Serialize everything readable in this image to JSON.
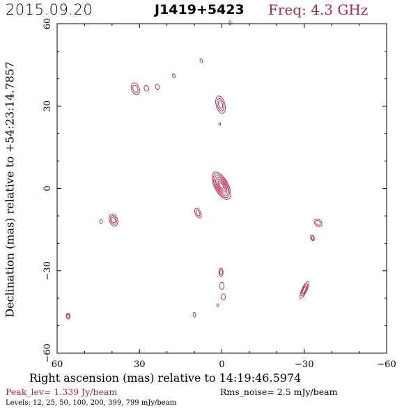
{
  "header": {
    "date": "2015.09.20",
    "source": "J1419+5423",
    "freq": "Freq: 4.3 GHz"
  },
  "footer": {
    "peak": "Peak_lev=  1.339 Jy/beam",
    "rms": "Rms_noise=  2.5 mJy/beam",
    "levels": "Levels:  12,  25,  50, 100, 200, 399, 799 mJy/beam"
  },
  "colors": {
    "contour": "#b0244f",
    "beam": "#666666",
    "text": "#000000"
  },
  "chart_data": {
    "type": "contour",
    "title": "J1419+5423",
    "xlabel": "Right ascension (mas) relative to 14:19:46.5974",
    "ylabel": "Declination (mas) relative to +54:23:14.7857",
    "xlim": [
      60,
      -60
    ],
    "ylim": [
      -60,
      60
    ],
    "xticks": [
      60,
      30,
      0,
      -30,
      -60
    ],
    "yticks": [
      -60,
      -30,
      0,
      30,
      60
    ],
    "xtick_labels": [
      "60",
      "30",
      "0",
      "−30",
      "−60"
    ],
    "ytick_labels": [
      "−60",
      "−30",
      "0",
      "30",
      "60"
    ],
    "contour_levels_mJy": [
      12,
      25,
      50,
      100,
      200,
      399,
      799
    ],
    "peak_Jy_per_beam": 1.339,
    "rms_noise_mJy_per_beam": 2.5,
    "beam": {
      "x": 57,
      "y": -57,
      "major_mas": 4.0,
      "minor_mas": 1.8,
      "pa_deg": 20
    },
    "components": [
      {
        "x": 0.2,
        "y": 1.0,
        "major": 11.0,
        "minor": 5.0,
        "pa": 28,
        "levels": 7
      },
      {
        "x": 0.5,
        "y": 30.5,
        "major": 6.5,
        "minor": 3.2,
        "pa": 15,
        "levels": 3
      },
      {
        "x": -3.0,
        "y": 60.3,
        "major": 1.5,
        "minor": 0.8,
        "pa": 0,
        "levels": 1
      },
      {
        "x": 7.5,
        "y": 46.5,
        "major": 1.5,
        "minor": 0.8,
        "pa": 20,
        "levels": 1
      },
      {
        "x": 17.5,
        "y": 41.0,
        "major": 1.6,
        "minor": 0.9,
        "pa": 20,
        "levels": 1
      },
      {
        "x": 31.5,
        "y": 36.3,
        "major": 4.5,
        "minor": 2.8,
        "pa": 20,
        "levels": 2
      },
      {
        "x": 27.5,
        "y": 36.5,
        "major": 2.2,
        "minor": 1.6,
        "pa": 20,
        "levels": 1
      },
      {
        "x": 23.5,
        "y": 37.0,
        "major": 2.0,
        "minor": 1.4,
        "pa": 20,
        "levels": 1
      },
      {
        "x": 0.8,
        "y": 23.5,
        "major": 1.0,
        "minor": 0.6,
        "pa": 0,
        "levels": 1
      },
      {
        "x": 39.5,
        "y": -11.5,
        "major": 4.5,
        "minor": 3.0,
        "pa": 20,
        "levels": 3
      },
      {
        "x": 44.0,
        "y": -12.0,
        "major": 1.5,
        "minor": 1.0,
        "pa": 0,
        "levels": 1
      },
      {
        "x": 8.7,
        "y": -9.0,
        "major": 3.8,
        "minor": 2.0,
        "pa": 25,
        "levels": 2
      },
      {
        "x": -35.0,
        "y": -12.5,
        "major": 3.2,
        "minor": 2.4,
        "pa": 45,
        "levels": 2
      },
      {
        "x": -33.0,
        "y": -18.0,
        "major": 2.2,
        "minor": 1.3,
        "pa": 20,
        "levels": 2
      },
      {
        "x": 0.3,
        "y": -30.5,
        "major": 3.0,
        "minor": 1.5,
        "pa": 0,
        "levels": 2
      },
      {
        "x": 0.0,
        "y": -35.5,
        "major": 2.5,
        "minor": 1.6,
        "pa": 0,
        "levels": 1
      },
      {
        "x": -0.5,
        "y": -39.5,
        "major": 2.2,
        "minor": 1.6,
        "pa": 0,
        "levels": 1
      },
      {
        "x": 1.5,
        "y": -42.5,
        "major": 1.0,
        "minor": 0.8,
        "pa": 0,
        "levels": 1
      },
      {
        "x": -30.0,
        "y": -37.0,
        "major": 6.8,
        "minor": 1.8,
        "pa": -25,
        "levels": 3
      },
      {
        "x": 10.0,
        "y": -46.0,
        "major": 1.8,
        "minor": 0.9,
        "pa": 10,
        "levels": 1
      },
      {
        "x": 56.0,
        "y": -46.5,
        "major": 2.2,
        "minor": 1.4,
        "pa": 10,
        "levels": 2
      }
    ]
  }
}
